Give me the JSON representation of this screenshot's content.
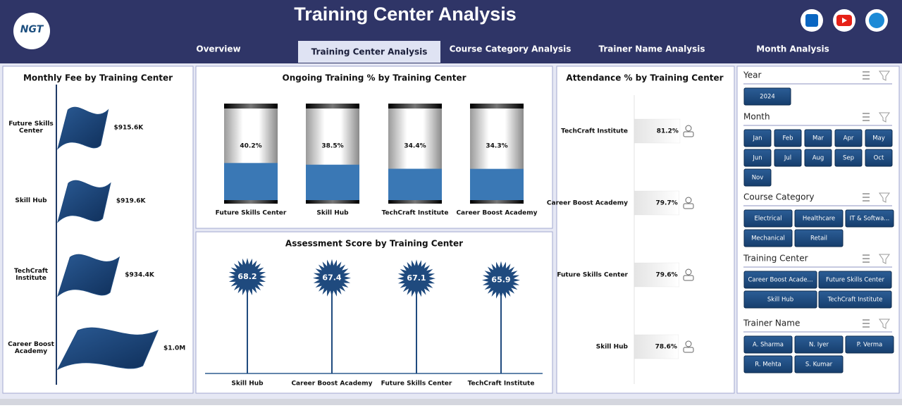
{
  "header": {
    "title": "Training Center Analysis",
    "logo": "NGT"
  },
  "nav": {
    "tabs": [
      "Overview",
      "Training Center Analysis",
      "Course Category Analysis",
      "Trainer Name Analysis",
      "Month Analysis"
    ],
    "active": 1
  },
  "chart_data": [
    {
      "type": "flagbar",
      "title": "Monthly Fee by Training Center",
      "categories": [
        "Future Skills Center",
        "Skill Hub",
        "TechCraft Institute",
        "Career Boost Academy"
      ],
      "values": [
        915600,
        919600,
        934400,
        1000000
      ],
      "value_labels": [
        "$915.6K",
        "$919.6K",
        "$934.4K",
        "$1.0M"
      ],
      "xlim": [
        830000,
        1000000
      ],
      "color": "#1f4a7e"
    },
    {
      "type": "cylinder",
      "title": "Ongoing Training % by Training Center",
      "categories": [
        "Future Skills Center",
        "Skill Hub",
        "TechCraft Institute",
        "Career Boost Academy"
      ],
      "values": [
        40.2,
        38.5,
        34.4,
        34.3
      ],
      "value_labels": [
        "40.2%",
        "38.5%",
        "34.4%",
        "34.3%"
      ],
      "ylim": [
        0,
        100
      ],
      "color": "#3a78b5"
    },
    {
      "type": "lollipop",
      "title": "Assessment Score by Training Center",
      "categories": [
        "Skill Hub",
        "Career Boost Academy",
        "Future Skills Center",
        "TechCraft Institute"
      ],
      "values": [
        68.2,
        67.4,
        67.1,
        65.9
      ],
      "ylim": [
        0,
        75
      ],
      "color": "#1f4a7e"
    },
    {
      "type": "hbar",
      "title": "Attendance % by Training Center",
      "categories": [
        "TechCraft Institute",
        "Career Boost Academy",
        "Future Skills Center",
        "Skill Hub"
      ],
      "values": [
        81.2,
        79.7,
        79.6,
        78.6
      ],
      "value_labels": [
        "81.2%",
        "79.7%",
        "79.6%",
        "78.6%"
      ],
      "xlim": [
        0,
        100
      ],
      "color": "#d9d9d9"
    }
  ],
  "slicers": [
    {
      "title": "Year",
      "items": [
        "2024"
      ]
    },
    {
      "title": "Month",
      "items": [
        "Jan",
        "Feb",
        "Mar",
        "Apr",
        "May",
        "Jun",
        "Jul",
        "Aug",
        "Sep",
        "Oct",
        "Nov"
      ]
    },
    {
      "title": "Course Category",
      "items": [
        "Electrical",
        "Healthcare",
        "IT & Softwa...",
        "Mechanical",
        "Retail"
      ]
    },
    {
      "title": "Training Center",
      "items": [
        "Career Boost Acade...",
        "Future Skills Center",
        "Skill Hub",
        "TechCraft Institute"
      ]
    },
    {
      "title": "Trainer Name",
      "items": [
        "A. Sharma",
        "N. Iyer",
        "P. Verma",
        "R. Mehta",
        "S. Kumar"
      ]
    }
  ]
}
